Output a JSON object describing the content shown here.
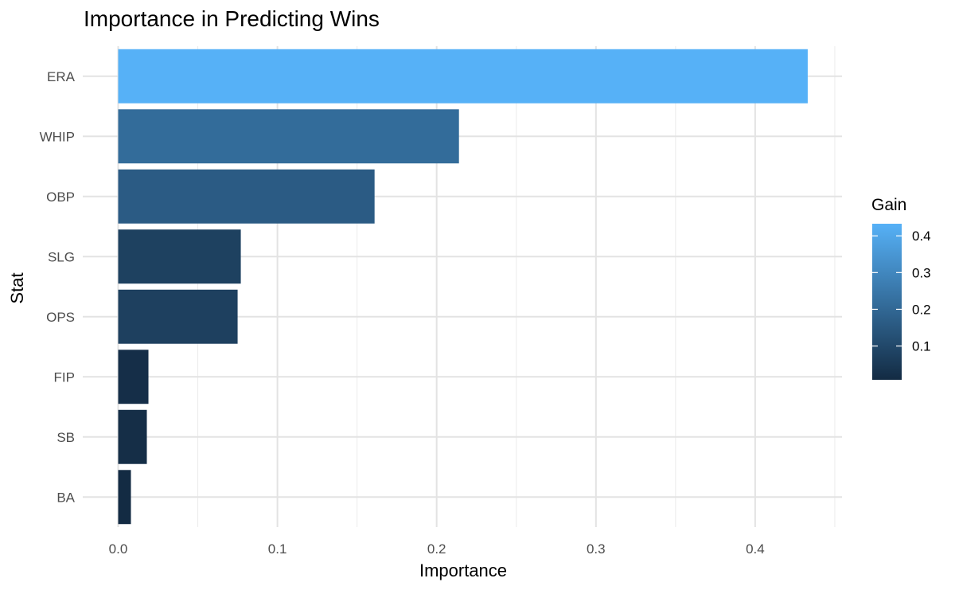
{
  "chart_data": {
    "type": "bar",
    "orientation": "horizontal",
    "title": "Importance in Predicting Wins",
    "xlabel": "Importance",
    "ylabel": "Stat",
    "categories": [
      "ERA",
      "WHIP",
      "OBP",
      "SLG",
      "OPS",
      "FIP",
      "SB",
      "BA"
    ],
    "values": [
      0.433,
      0.214,
      0.161,
      0.077,
      0.075,
      0.019,
      0.018,
      0.008
    ],
    "xlim": [
      0,
      0.45
    ],
    "xticks": [
      0.0,
      0.1,
      0.2,
      0.3,
      0.4
    ],
    "xtick_labels": [
      "0.0",
      "0.1",
      "0.2",
      "0.3",
      "0.4"
    ],
    "grid": true,
    "legend": {
      "title": "Gain",
      "placement": "right",
      "type": "colorbar",
      "range": [
        0.008,
        0.433
      ],
      "ticks": [
        0.1,
        0.2,
        0.3,
        0.4
      ],
      "tick_labels": [
        "0.1",
        "0.2",
        "0.3",
        "0.4"
      ],
      "color_low": "#132B43",
      "color_high": "#56B1F7"
    }
  }
}
